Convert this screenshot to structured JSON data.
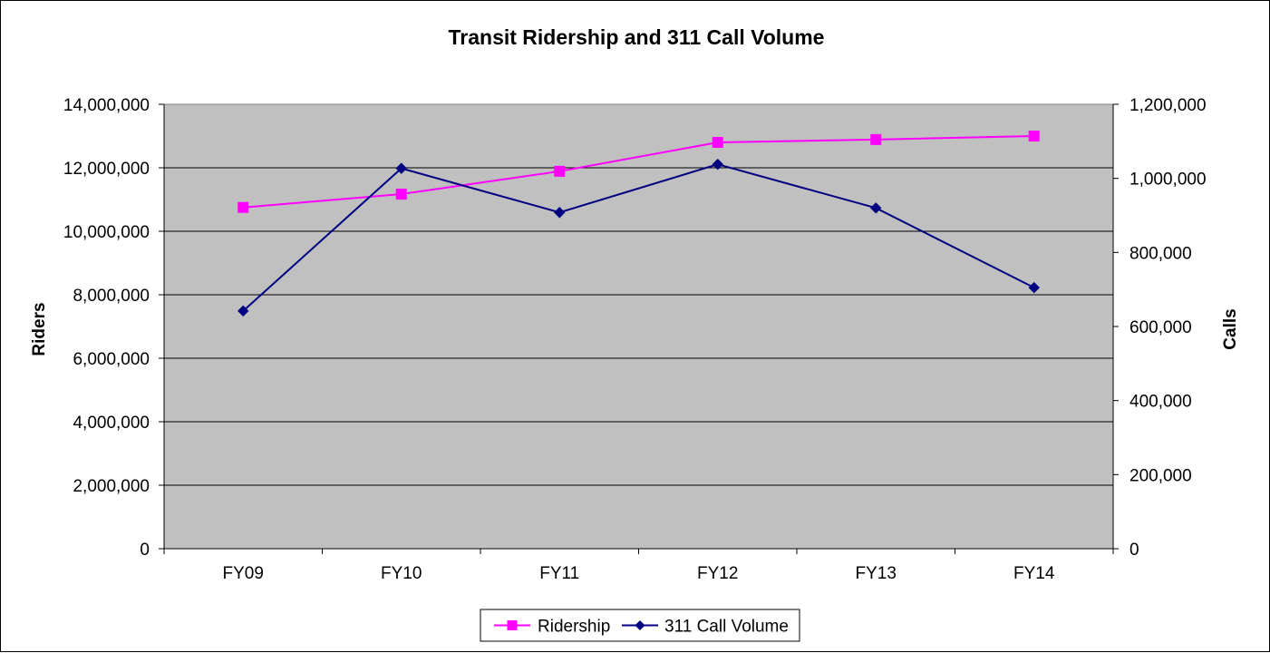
{
  "chart_data": {
    "type": "line",
    "title": "Transit Ridership and 311 Call Volume",
    "categories": [
      "FY09",
      "FY10",
      "FY11",
      "FY12",
      "FY13",
      "FY14"
    ],
    "y_left": {
      "label": "Riders",
      "range": [
        0,
        14000000
      ],
      "ticks": [
        0,
        2000000,
        4000000,
        6000000,
        8000000,
        10000000,
        12000000,
        14000000
      ],
      "tick_labels": [
        "0",
        "2,000,000",
        "4,000,000",
        "6,000,000",
        "8,000,000",
        "10,000,000",
        "12,000,000",
        "14,000,000"
      ]
    },
    "y_right": {
      "label": "Calls",
      "range": [
        0,
        1200000
      ],
      "ticks": [
        0,
        200000,
        400000,
        600000,
        800000,
        1000000,
        1200000
      ],
      "tick_labels": [
        "0",
        "200,000",
        "400,000",
        "600,000",
        "800,000",
        "1,000,000",
        "1,200,000"
      ]
    },
    "series": [
      {
        "name": "Ridership",
        "axis": "left",
        "color": "#ff00ff",
        "marker": "square",
        "values": [
          10750000,
          11170000,
          11890000,
          12800000,
          12890000,
          13000000
        ]
      },
      {
        "name": "311 Call Volume",
        "axis": "right",
        "color": "#000080",
        "marker": "diamond",
        "values": [
          642000,
          1027000,
          908000,
          1038000,
          920000,
          705000
        ]
      }
    ],
    "grid": true,
    "gridlines": "horizontal",
    "plot_background": "#c0c0c0",
    "legend_position": "bottom"
  }
}
